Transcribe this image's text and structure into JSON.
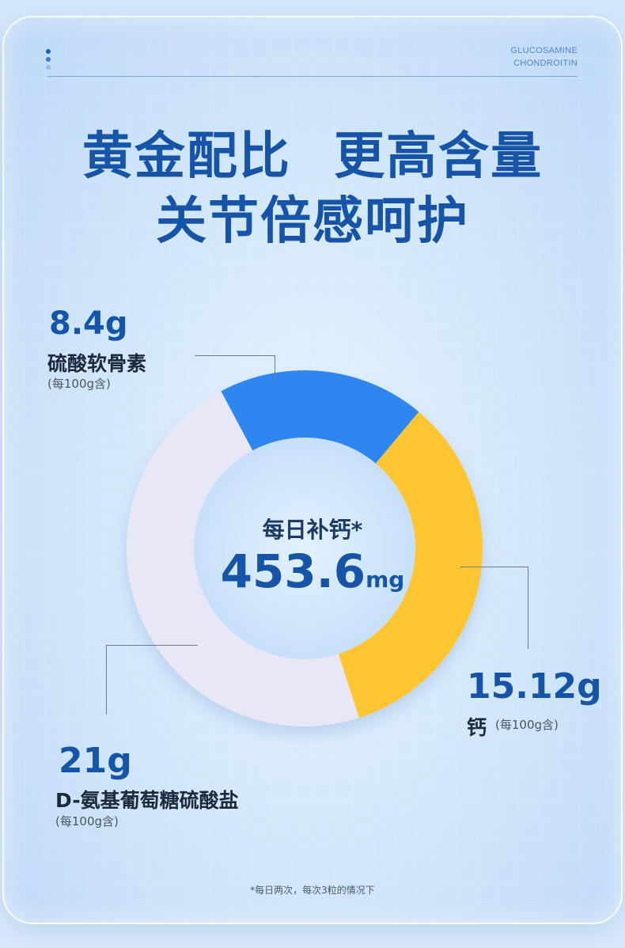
{
  "brand": {
    "line1": "GLUCOSAMINE",
    "line2": "CHONDROITIN"
  },
  "headline": {
    "line1": "黄金配比 更高含量",
    "line2": "关节倍感呵护"
  },
  "center": {
    "label": "每日补钙*",
    "value": "453.6",
    "unit": "mg"
  },
  "segments": [
    {
      "name": "硫酸软骨素",
      "value": "8.4g",
      "note": "(每100g含)",
      "amount": 8.4,
      "color": "#2f86f0"
    },
    {
      "name": "钙",
      "value": "15.12g",
      "note": "(每100g含)",
      "amount": 15.12,
      "color": "#ffc633"
    },
    {
      "name": "D-氨基葡萄糖硫酸盐",
      "value": "21g",
      "note": "(每100g含)",
      "amount": 21,
      "color": "#e7e7f6"
    }
  ],
  "footnote": "*每日两次，每次3粒的情况下",
  "colors": {
    "accent": "#1554a8",
    "chondroitin": "#2f86f0",
    "calcium": "#ffc633",
    "glucosamine": "#e7e7f6"
  }
}
